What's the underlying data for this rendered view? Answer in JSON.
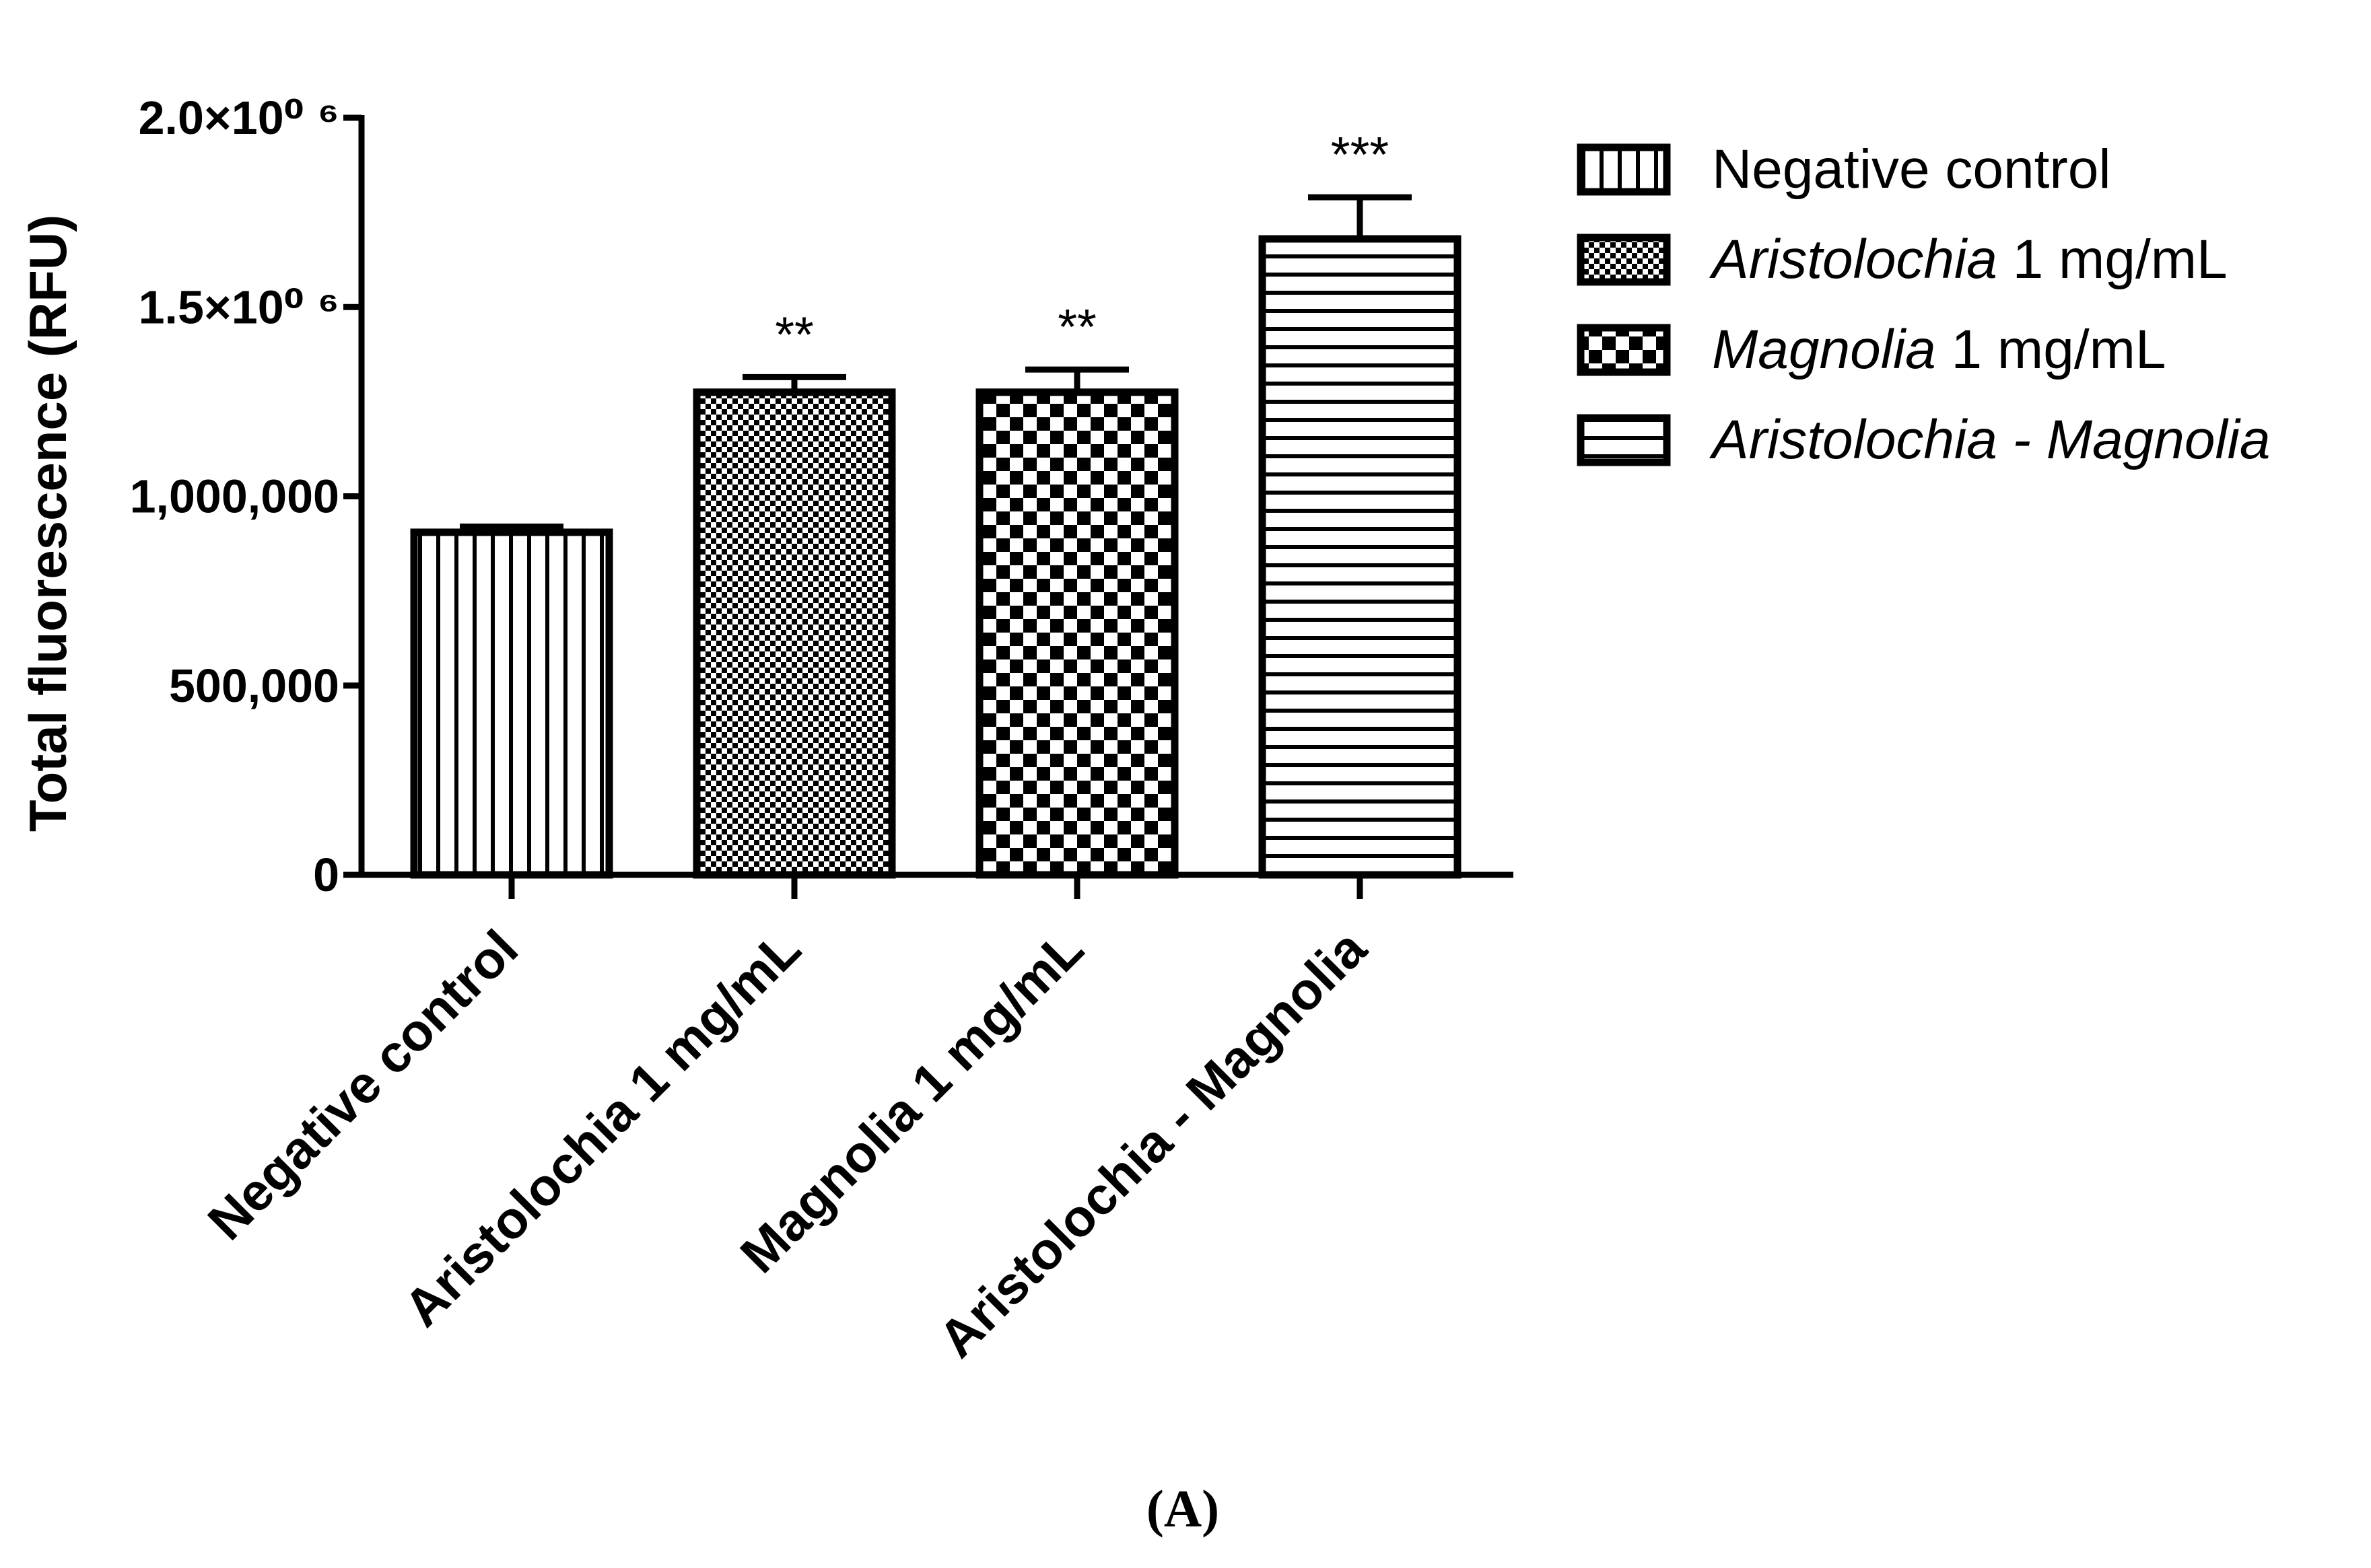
{
  "panel_label": "(A)",
  "chart_data": {
    "type": "bar",
    "title": "",
    "xlabel": "",
    "ylabel": "Total fluorescence (RFU)",
    "ylim": [
      0,
      2000000
    ],
    "y_ticks": [
      {
        "value": 0,
        "label": "0"
      },
      {
        "value": 500000,
        "label": "500,000"
      },
      {
        "value": 1000000,
        "label": "1,000,000"
      },
      {
        "value": 1500000,
        "label": "1.5×10⁰ ⁶"
      },
      {
        "value": 2000000,
        "label": "2.0×10⁰ ⁶"
      }
    ],
    "categories": [
      "Negative control",
      "Aristolochia 1 mg/mL",
      "Magnolia 1 mg/mL",
      "Aristolochia - Magnolia"
    ],
    "values": [
      905000,
      1275000,
      1275000,
      1680000
    ],
    "errors": [
      15000,
      40000,
      60000,
      110000
    ],
    "significance": [
      "",
      "**",
      "**",
      "***"
    ],
    "patterns": [
      "vertical-stripes",
      "fine-checker",
      "checker",
      "horizontal-stripes"
    ],
    "legend": {
      "position": "right",
      "entries": [
        {
          "italic": "",
          "text": "Negative control"
        },
        {
          "italic": "Aristolochia",
          "text": " 1 mg/mL"
        },
        {
          "italic": "Magnolia",
          "text": " 1 mg/mL"
        },
        {
          "italic": "Aristolochia - Magnolia",
          "text": ""
        }
      ]
    },
    "colors": {
      "bar_stroke": "#000000",
      "bar_fill": "#ffffff",
      "axis": "#000000",
      "text": "#000000"
    }
  }
}
